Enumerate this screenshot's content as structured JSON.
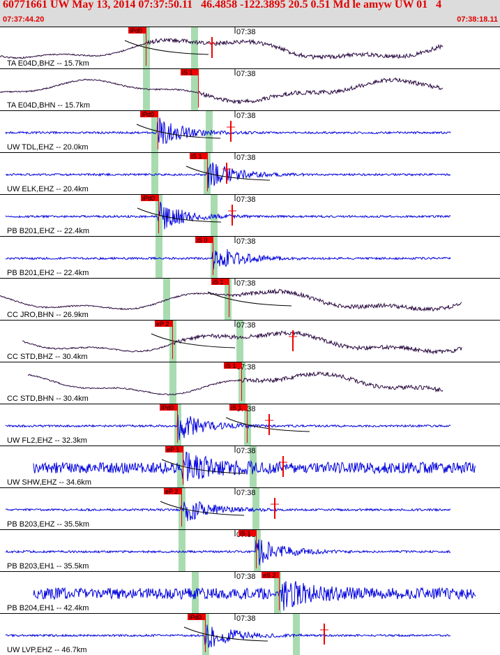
{
  "header": {
    "title": "60771661 UW May 13, 2014 07:37:50.11   46.4858 -122.3895 20.5 0.51 Md le amyw UW 01   4",
    "start_time": "07:37:44.20",
    "end_time": "07:38:18.11"
  },
  "minute_tick": "07:38",
  "colors": {
    "short_period": "#0000dd",
    "broadband": "#2a0a40",
    "pick": "#ee0000",
    "arrival_band": "#a8dcb0",
    "header_text": "#e00000",
    "header_bg": "#dcdcdc"
  },
  "traces": [
    {
      "label": "TA E04D,BHZ -- 15.7km",
      "type": "broadband",
      "picks": [
        {
          "text": "iPd0",
          "x": 209
        }
      ],
      "bands": [
        209,
        278
      ],
      "red_marker": 304,
      "coda": true
    },
    {
      "label": "TA E04D,BHN -- 15.7km",
      "type": "broadband",
      "picks": [
        {
          "text": "iS 1",
          "x": 284
        }
      ],
      "bands": [
        209,
        278
      ],
      "red_marker": null,
      "coda": false
    },
    {
      "label": "UW TDL,EHZ -- 20.0km",
      "type": "short_period",
      "picks": [
        {
          "text": "iPd0",
          "x": 226
        }
      ],
      "bands": [
        221,
        299
      ],
      "red_marker": 331,
      "coda": true
    },
    {
      "label": "UW ELK,EHZ -- 20.4km",
      "type": "short_period",
      "picks": [
        {
          "text": "iS 1",
          "x": 297
        }
      ],
      "bands": [
        221,
        296
      ],
      "red_marker": 325,
      "coda": true
    },
    {
      "label": "PB B201,EHZ -- 22.4km",
      "type": "short_period",
      "picks": [
        {
          "text": "iPd0",
          "x": 227
        }
      ],
      "bands": [
        227,
        306
      ],
      "red_marker": 333,
      "coda": true
    },
    {
      "label": "PB B201,EH2 -- 22.4km",
      "type": "short_period",
      "picks": [
        {
          "text": "iS 0",
          "x": 305
        }
      ],
      "bands": [
        227,
        306
      ],
      "red_marker": null,
      "coda": false
    },
    {
      "label": "CC JRO,BHN -- 26.9km",
      "type": "broadband",
      "picks": [
        {
          "text": "iS 1",
          "x": 328
        }
      ],
      "bands": [
        238,
        326
      ],
      "red_marker": null,
      "coda": true
    },
    {
      "label": "CC STD,BHZ -- 30.4km",
      "type": "broadband",
      "picks": [
        {
          "text": "eP 2",
          "x": 247
        }
      ],
      "bands": [
        247,
        343
      ],
      "red_marker": 420,
      "coda": true
    },
    {
      "label": "CC STD,BHN -- 30.4km",
      "type": "broadband",
      "picks": [
        {
          "text": "iS 1",
          "x": 346
        }
      ],
      "bands": [
        247,
        346
      ],
      "red_marker": null,
      "coda": false
    },
    {
      "label": "UW FL2,EHZ -- 32.3km",
      "type": "short_period",
      "picks": [
        {
          "text": "iPd0",
          "x": 254
        },
        {
          "text": "iS 1",
          "x": 354
        }
      ],
      "bands": [
        254,
        354
      ],
      "red_marker": 386,
      "coda": true
    },
    {
      "label": "UW SHW,EHZ -- 34.6km",
      "type": "short_period_noisy",
      "picks": [
        {
          "text": "eP 1",
          "x": 262
        }
      ],
      "bands": [
        258,
        362
      ],
      "red_marker": 406,
      "coda": true
    },
    {
      "label": "PB B203,EHZ -- 35.5km",
      "type": "short_period",
      "picks": [
        {
          "text": "eP 2",
          "x": 260
        }
      ],
      "bands": [
        260,
        366
      ],
      "red_marker": 394,
      "coda": true
    },
    {
      "label": "PB B203,EH1 -- 35.5km",
      "type": "short_period",
      "picks": [
        {
          "text": "iS 1",
          "x": 367
        }
      ],
      "bands": [
        260,
        368
      ],
      "red_marker": null,
      "coda": false
    },
    {
      "label": "PB B204,EH1 -- 42.4km",
      "type": "short_period_noisy",
      "picks": [
        {
          "text": "eS 2",
          "x": 400
        }
      ],
      "bands": [
        279,
        397
      ],
      "red_marker": null,
      "coda": false
    },
    {
      "label": "UW LVP,EHZ -- 46.7km",
      "type": "short_period",
      "picks": [
        {
          "text": "iPd0",
          "x": 294
        }
      ],
      "bands": [
        294,
        424
      ],
      "red_marker": 465,
      "coda": true
    }
  ]
}
